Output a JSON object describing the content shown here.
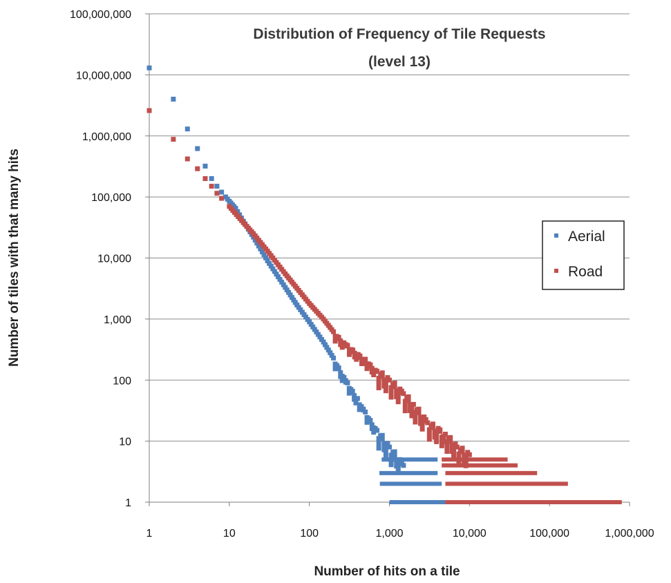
{
  "chart_data": {
    "type": "scatter",
    "title": "Distribution of Frequency of Tile Requests",
    "subtitle": "(level 13)",
    "xlabel": "Number of hits on a tile",
    "ylabel": "Number of tiles with that many hits",
    "x_scale": "log",
    "y_scale": "log",
    "xlim": [
      1,
      1000000
    ],
    "ylim": [
      1,
      100000000
    ],
    "x_ticks": [
      "1",
      "10",
      "100",
      "1,000",
      "10,000",
      "100,000",
      "1,000,000"
    ],
    "y_ticks": [
      "100,000,000",
      "10,000,000",
      "1,000,000",
      "100,000",
      "10,000",
      "1,000",
      "100",
      "10",
      "1"
    ],
    "grid": "horizontal",
    "legend_position": "right",
    "series": [
      {
        "name": "Aerial",
        "color": "#4f81bd",
        "points": [
          [
            1,
            13000000
          ],
          [
            2,
            4000000
          ],
          [
            3,
            1300000
          ],
          [
            4,
            620000
          ],
          [
            5,
            320000
          ],
          [
            6,
            200000
          ],
          [
            7,
            150000
          ],
          [
            8,
            120000
          ],
          [
            9,
            100000
          ],
          [
            10,
            85000
          ],
          [
            12,
            65000
          ],
          [
            15,
            40000
          ],
          [
            20,
            22000
          ],
          [
            30,
            9000
          ],
          [
            50,
            3300
          ],
          [
            70,
            1700
          ],
          [
            100,
            900
          ],
          [
            150,
            420
          ],
          [
            200,
            230
          ],
          [
            300,
            90
          ],
          [
            400,
            50
          ],
          [
            500,
            30
          ],
          [
            700,
            15
          ],
          [
            1000,
            8
          ],
          [
            1500,
            4
          ]
        ],
        "stripes": [
          {
            "y": 5,
            "x_from": 800,
            "x_to": 4000
          },
          {
            "y": 3,
            "x_from": 750,
            "x_to": 4000
          },
          {
            "y": 2,
            "x_from": 760,
            "x_to": 4500
          },
          {
            "y": 1,
            "x_from": 1000,
            "x_to": 5000
          }
        ]
      },
      {
        "name": "Road",
        "color": "#c0504d",
        "points": [
          [
            1,
            2600000
          ],
          [
            2,
            880000
          ],
          [
            3,
            420000
          ],
          [
            4,
            290000
          ],
          [
            5,
            200000
          ],
          [
            6,
            150000
          ],
          [
            7,
            115000
          ],
          [
            8,
            95000
          ],
          [
            10,
            70000
          ],
          [
            15,
            38000
          ],
          [
            20,
            25000
          ],
          [
            30,
            13000
          ],
          [
            50,
            5500
          ],
          [
            70,
            3200
          ],
          [
            100,
            1800
          ],
          [
            150,
            1000
          ],
          [
            200,
            620
          ],
          [
            300,
            370
          ],
          [
            500,
            220
          ],
          [
            700,
            140
          ],
          [
            1000,
            100
          ],
          [
            1500,
            60
          ],
          [
            2000,
            40
          ],
          [
            3000,
            20
          ],
          [
            5000,
            13
          ],
          [
            7000,
            8
          ],
          [
            10000,
            6
          ]
        ],
        "stripes": [
          {
            "y": 5,
            "x_from": 4500,
            "x_to": 30000
          },
          {
            "y": 4,
            "x_from": 4500,
            "x_to": 40000
          },
          {
            "y": 3,
            "x_from": 5000,
            "x_to": 70000
          },
          {
            "y": 2,
            "x_from": 5000,
            "x_to": 170000
          },
          {
            "y": 1,
            "x_from": 5000,
            "x_to": 800000
          }
        ]
      }
    ]
  }
}
